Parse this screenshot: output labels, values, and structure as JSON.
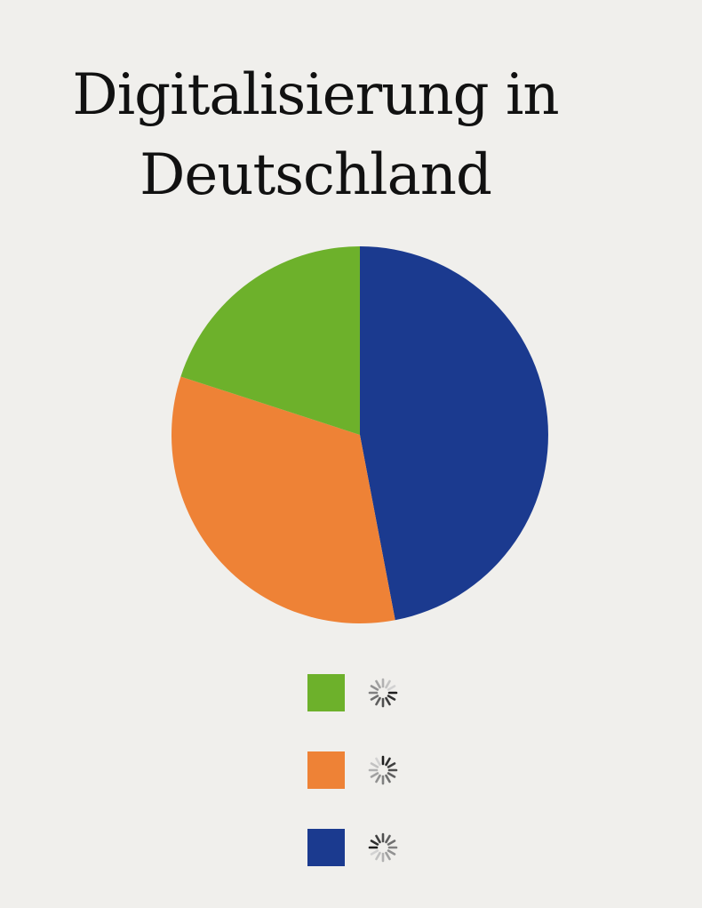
{
  "chart_data": {
    "type": "pie",
    "title": "Digitalisierung in Deutschland",
    "title_lines": [
      "Digitalisierung in",
      "Deutschland"
    ],
    "slices": [
      {
        "label": "",
        "value": 47,
        "color": "#1b3a8f"
      },
      {
        "label": "",
        "value": 33,
        "color": "#ee8236"
      },
      {
        "label": "",
        "value": 20,
        "color": "#6db12b"
      }
    ],
    "start_angle_deg": 0,
    "direction": "clockwise",
    "legend": [
      {
        "color": "#6db12b",
        "icon": "loading-spinner-icon",
        "label": ""
      },
      {
        "color": "#ee8236",
        "icon": "loading-spinner-icon",
        "label": ""
      },
      {
        "color": "#1b3a8f",
        "icon": "loading-spinner-icon",
        "label": ""
      }
    ],
    "legend_position": "bottom-center"
  }
}
